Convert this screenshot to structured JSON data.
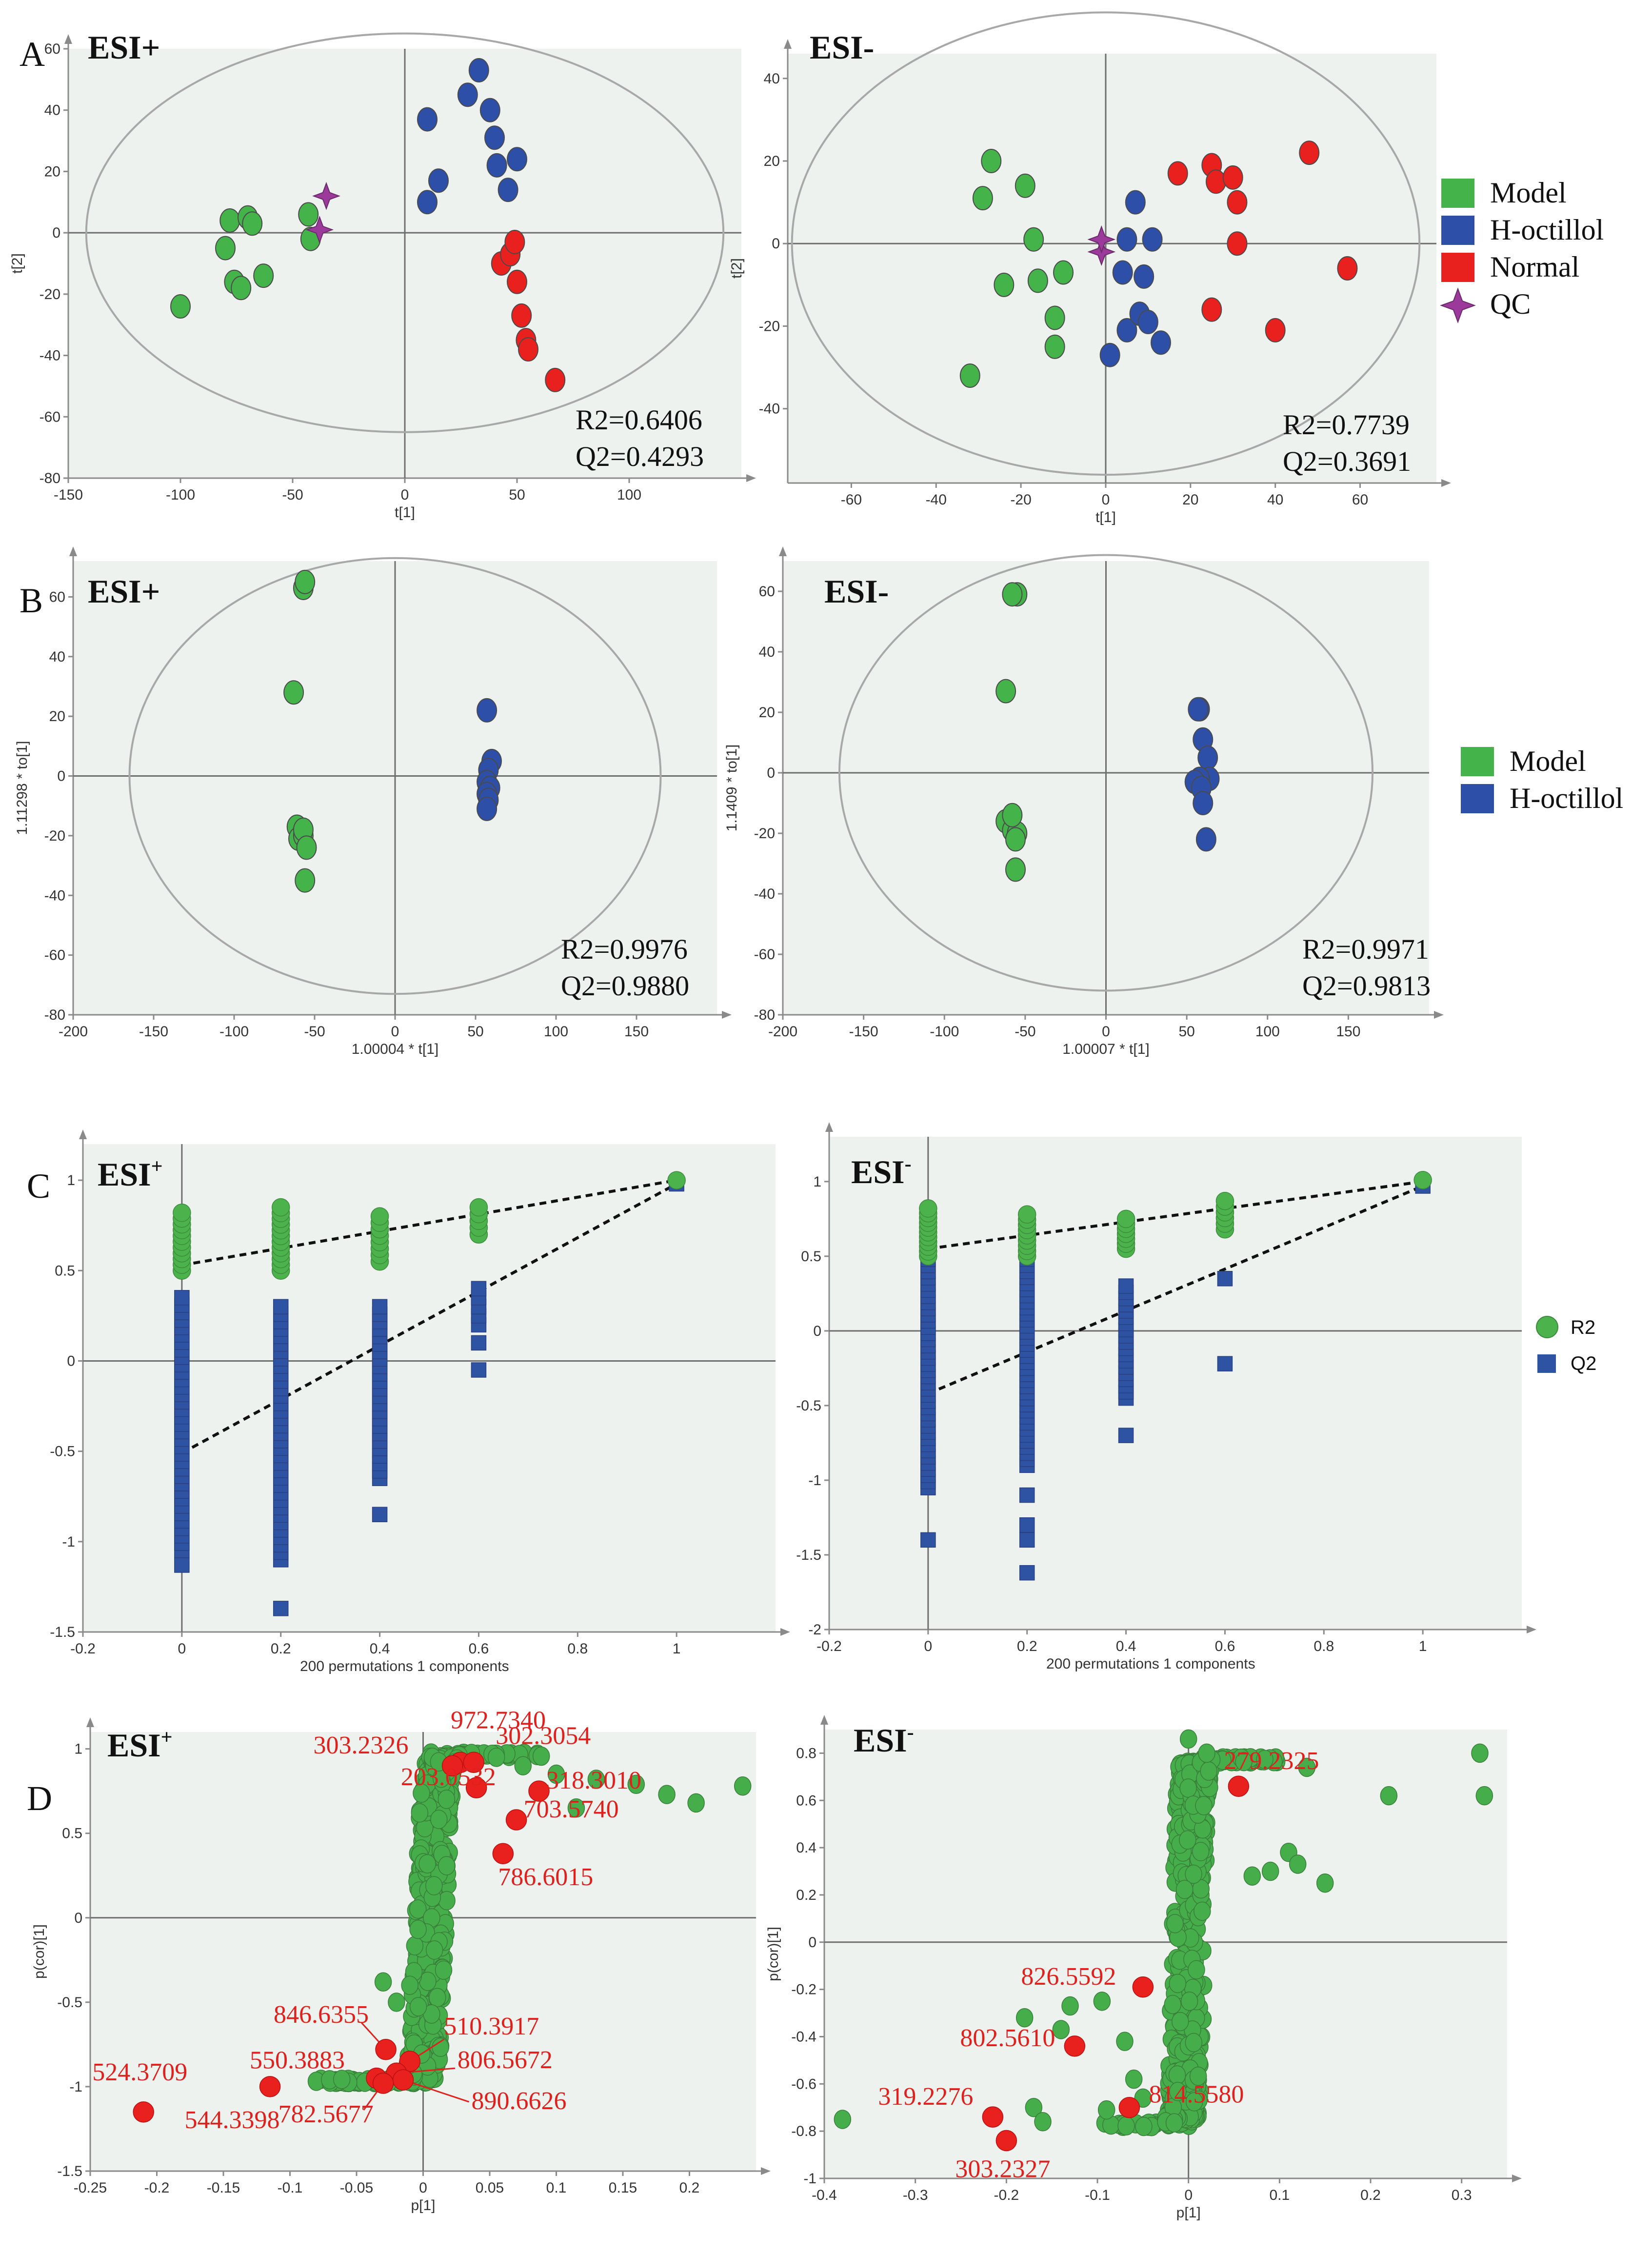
{
  "colors": {
    "model": "#44b34a",
    "hoctillol": "#2e4fa8",
    "normal": "#e8201e",
    "qc": "#9b3a9a",
    "r2": "#4cb34c",
    "q2": "#2f53a3",
    "label_red": "#e0201d",
    "marker_edge": "#555555"
  },
  "panels": {
    "A": "A",
    "B": "B",
    "C": "C",
    "D": "D"
  },
  "esi": {
    "pos": "ESI+",
    "neg": "ESI-",
    "pos_base": "ESI",
    "neg_base": "ESI",
    "plus": "+",
    "minus": "-"
  },
  "legendA": [
    {
      "label": "Model",
      "color": "model"
    },
    {
      "label": "H-octillol",
      "color": "hoctillol"
    },
    {
      "label": "Normal",
      "color": "normal"
    },
    {
      "label": "QC",
      "color": "qc"
    }
  ],
  "legendB": [
    {
      "label": "Model",
      "color": "model"
    },
    {
      "label": "H-octillol",
      "color": "hoctillol"
    }
  ],
  "legendC": [
    {
      "label": "R2"
    },
    {
      "label": "Q2"
    }
  ],
  "stats": {
    "A_pos": {
      "r": "R2=0.6406",
      "q": "Q2=0.4293"
    },
    "A_neg": {
      "r": "R2=0.7739",
      "q": "Q2=0.3691"
    },
    "B_pos": {
      "r": "R2=0.9976",
      "q": "Q2=0.9880"
    },
    "B_neg": {
      "r": "R2=0.9971",
      "q": "Q2=0.9813"
    }
  },
  "chart_data": [
    {
      "id": "A_pos",
      "type": "scatter",
      "title": "ESI+",
      "xlabel": "t[1]",
      "ylabel": "t[2]",
      "xlim": [
        -150,
        150
      ],
      "ylim": [
        -80,
        60
      ],
      "xticks": [
        -150,
        -100,
        -50,
        0,
        50,
        100
      ],
      "yticks": [
        -80,
        -60,
        -40,
        -20,
        0,
        20,
        40,
        60
      ],
      "ellipse": {
        "rx": 142,
        "ry": 65
      },
      "series": [
        {
          "name": "Model",
          "color": "model",
          "marker": "circle",
          "points": [
            [
              -100,
              -24
            ],
            [
              -80,
              -5
            ],
            [
              -78,
              4
            ],
            [
              -76,
              -16
            ],
            [
              -73,
              -18
            ],
            [
              -70,
              5
            ],
            [
              -68,
              3
            ],
            [
              -63,
              -14
            ],
            [
              -43,
              6
            ],
            [
              -42,
              -2
            ]
          ]
        },
        {
          "name": "H-octillol",
          "color": "hoctillol",
          "marker": "circle",
          "points": [
            [
              10,
              37
            ],
            [
              10,
              10
            ],
            [
              15,
              17
            ],
            [
              28,
              45
            ],
            [
              33,
              53
            ],
            [
              38,
              40
            ],
            [
              40,
              31
            ],
            [
              41,
              22
            ],
            [
              46,
              14
            ],
            [
              50,
              24
            ]
          ]
        },
        {
          "name": "Normal",
          "color": "normal",
          "marker": "circle",
          "points": [
            [
              43,
              -10
            ],
            [
              47,
              -7
            ],
            [
              49,
              -3
            ],
            [
              50,
              -16
            ],
            [
              52,
              -27
            ],
            [
              54,
              -35
            ],
            [
              55,
              -38
            ],
            [
              67,
              -48
            ]
          ]
        },
        {
          "name": "QC",
          "color": "qc",
          "marker": "star",
          "points": [
            [
              -35,
              12
            ],
            [
              -38,
              1
            ]
          ]
        }
      ]
    },
    {
      "id": "A_neg",
      "type": "scatter",
      "title": "ESI-",
      "xlabel": "t[1]",
      "ylabel": "t[2]",
      "xlim": [
        -75,
        78
      ],
      "ylim": [
        -58,
        46
      ],
      "xticks": [
        -60,
        -40,
        -20,
        0,
        20,
        40,
        60
      ],
      "yticks": [
        -40,
        -20,
        0,
        20,
        40
      ],
      "ellipse": {
        "rx": 74,
        "ry": 56
      },
      "series": [
        {
          "name": "Model",
          "color": "model",
          "marker": "circle",
          "points": [
            [
              -32,
              -32
            ],
            [
              -29,
              11
            ],
            [
              -27,
              20
            ],
            [
              -24,
              -10
            ],
            [
              -19,
              14
            ],
            [
              -17,
              1
            ],
            [
              -16,
              -9
            ],
            [
              -12,
              -18
            ],
            [
              -12,
              -25
            ],
            [
              -10,
              -7
            ]
          ]
        },
        {
          "name": "H-octillol",
          "color": "hoctillol",
          "marker": "circle",
          "points": [
            [
              1,
              -27
            ],
            [
              4,
              -7
            ],
            [
              5,
              -21
            ],
            [
              5,
              1
            ],
            [
              7,
              10
            ],
            [
              8,
              -17
            ],
            [
              9,
              -8
            ],
            [
              10,
              -19
            ],
            [
              11,
              1
            ],
            [
              13,
              -24
            ]
          ]
        },
        {
          "name": "Normal",
          "color": "normal",
          "marker": "circle",
          "points": [
            [
              17,
              17
            ],
            [
              25,
              -16
            ],
            [
              25,
              19
            ],
            [
              26,
              15
            ],
            [
              30,
              16
            ],
            [
              31,
              10
            ],
            [
              31,
              0
            ],
            [
              40,
              -21
            ],
            [
              48,
              22
            ],
            [
              57,
              -6
            ]
          ]
        },
        {
          "name": "QC",
          "color": "qc",
          "marker": "star",
          "points": [
            [
              -1,
              -2
            ],
            [
              -1,
              1
            ]
          ]
        }
      ]
    },
    {
      "id": "B_pos",
      "type": "scatter",
      "title": "ESI+",
      "xlabel": "1.00004 * t[1]",
      "ylabel": "1.11298 * to[1]",
      "xlim": [
        -200,
        200
      ],
      "ylim": [
        -80,
        72
      ],
      "xticks": [
        -200,
        -150,
        -100,
        -50,
        0,
        50,
        100,
        150
      ],
      "yticks": [
        -80,
        -60,
        -40,
        -20,
        0,
        20,
        40,
        60
      ],
      "ellipse": {
        "rx": 165,
        "ry": 73
      },
      "series": [
        {
          "name": "Model",
          "color": "model",
          "marker": "circle",
          "points": [
            [
              -57,
              63
            ],
            [
              -56,
              65
            ],
            [
              -63,
              28
            ],
            [
              -61,
              -17
            ],
            [
              -60,
              -21
            ],
            [
              -57,
              -20
            ],
            [
              -57,
              -18
            ],
            [
              -55,
              -24
            ],
            [
              -56,
              -35
            ]
          ]
        },
        {
          "name": "H-octillol",
          "color": "hoctillol",
          "marker": "circle",
          "points": [
            [
              57,
              22
            ],
            [
              60,
              5
            ],
            [
              58,
              2
            ],
            [
              57,
              -2
            ],
            [
              59,
              -4
            ],
            [
              57,
              -6
            ],
            [
              58,
              -8
            ],
            [
              57,
              -11
            ]
          ]
        }
      ]
    },
    {
      "id": "B_neg",
      "type": "scatter",
      "title": "ESI-",
      "xlabel": "1.00007 * t[1]",
      "ylabel": "1.1409 * to[1]",
      "xlim": [
        -200,
        200
      ],
      "ylim": [
        -80,
        70
      ],
      "xticks": [
        -200,
        -150,
        -100,
        -50,
        0,
        50,
        100,
        150
      ],
      "yticks": [
        -80,
        -60,
        -40,
        -20,
        0,
        20,
        40,
        60
      ],
      "ellipse": {
        "rx": 165,
        "ry": 72
      },
      "series": [
        {
          "name": "Model",
          "color": "model",
          "marker": "circle",
          "points": [
            [
              -55,
              59
            ],
            [
              -58,
              59
            ],
            [
              -62,
              27
            ],
            [
              -62,
              -16
            ],
            [
              -58,
              -19
            ],
            [
              -55,
              -20
            ],
            [
              -56,
              -22
            ],
            [
              -58,
              -14
            ],
            [
              -56,
              -32
            ]
          ]
        },
        {
          "name": "H-octillol",
          "color": "hoctillol",
          "marker": "circle",
          "points": [
            [
              58,
              21
            ],
            [
              57,
              21
            ],
            [
              60,
              11
            ],
            [
              63,
              5
            ],
            [
              64,
              -2
            ],
            [
              58,
              -2
            ],
            [
              55,
              -3
            ],
            [
              59,
              -5
            ],
            [
              60,
              -10
            ],
            [
              62,
              -22
            ]
          ]
        }
      ]
    },
    {
      "id": "C_pos",
      "type": "scatter",
      "title": "ESI+",
      "xlabel": "200 permutations 1 components",
      "ylabel": "",
      "xlim": [
        -0.2,
        1.2
      ],
      "ylim": [
        -1.5,
        1.2
      ],
      "xticks": [
        -0.2,
        0,
        0.2,
        0.4,
        0.6,
        0.8,
        1
      ],
      "yticks": [
        -1.5,
        -1,
        -0.5,
        0,
        0.5,
        1
      ],
      "lines": [
        {
          "x": [
            0,
            1
          ],
          "y": [
            0.53,
            1.0
          ]
        },
        {
          "x": [
            0,
            1
          ],
          "y": [
            -0.51,
            0.98
          ]
        }
      ],
      "series": [
        {
          "name": "R2",
          "color": "r2",
          "marker": "circle",
          "x": [
            0,
            0.2,
            0.4,
            0.6,
            1
          ],
          "range": [
            [
              0.5,
              0.82
            ],
            [
              0.5,
              0.85
            ],
            [
              0.55,
              0.8
            ],
            [
              0.7,
              0.85
            ],
            [
              1.0,
              1.0
            ]
          ]
        },
        {
          "name": "Q2",
          "color": "q2",
          "marker": "square",
          "x": [
            0,
            0.2,
            0.4,
            0.6,
            1
          ],
          "range": [
            [
              -1.05,
              0.35
            ],
            [
              -1.1,
              0.3
            ],
            [
              -0.65,
              0.3
            ],
            [
              0.2,
              0.4
            ],
            [
              0.98,
              0.98
            ]
          ],
          "outliers": [
            [
              0,
              -1.13
            ],
            [
              0.2,
              -1.37
            ],
            [
              0.4,
              -0.85
            ],
            [
              0.6,
              -0.05
            ],
            [
              0.6,
              0.1
            ]
          ]
        }
      ]
    },
    {
      "id": "C_neg",
      "type": "scatter",
      "title": "ESI-",
      "xlabel": "200 permutations 1 components",
      "ylabel": "",
      "xlim": [
        -0.2,
        1.2
      ],
      "ylim": [
        -2,
        1.3
      ],
      "xticks": [
        -0.2,
        0,
        0.2,
        0.4,
        0.6,
        0.8,
        1
      ],
      "yticks": [
        -2,
        -1.5,
        -1,
        -0.5,
        0,
        0.5,
        1
      ],
      "lines": [
        {
          "x": [
            0,
            1
          ],
          "y": [
            0.55,
            1.0
          ]
        },
        {
          "x": [
            0,
            1
          ],
          "y": [
            -0.42,
            0.97
          ]
        }
      ],
      "series": [
        {
          "name": "R2",
          "color": "r2",
          "marker": "circle",
          "x": [
            0,
            0.2,
            0.4,
            0.6,
            1
          ],
          "range": [
            [
              0.5,
              0.82
            ],
            [
              0.5,
              0.78
            ],
            [
              0.55,
              0.75
            ],
            [
              0.68,
              0.87
            ],
            [
              1.01,
              1.01
            ]
          ]
        },
        {
          "name": "Q2",
          "color": "q2",
          "marker": "square",
          "x": [
            0,
            0.2,
            0.4,
            0.6,
            1
          ],
          "range": [
            [
              -1.05,
              0.48
            ],
            [
              -0.9,
              0.48
            ],
            [
              -0.45,
              0.3
            ],
            [
              0.35,
              0.35
            ],
            [
              0.97,
              0.97
            ]
          ],
          "outliers": [
            [
              0,
              -1.4
            ],
            [
              0.2,
              -1.1
            ],
            [
              0.2,
              -1.3
            ],
            [
              0.2,
              -1.4
            ],
            [
              0.2,
              -1.62
            ],
            [
              0.4,
              -0.7
            ],
            [
              0.6,
              -0.22
            ]
          ]
        }
      ]
    },
    {
      "id": "D_pos",
      "type": "scatter",
      "title": "ESI+",
      "xlabel": "p[1]",
      "ylabel": "p(cor)[1]",
      "xlim": [
        -0.25,
        0.25
      ],
      "ylim": [
        -1.5,
        1.1
      ],
      "xticks": [
        -0.25,
        -0.2,
        -0.15,
        -0.1,
        -0.05,
        0,
        0.05,
        0.1,
        0.15,
        0.2
      ],
      "yticks": [
        -1.5,
        -1,
        -0.5,
        0,
        0.5,
        1
      ],
      "highlighted": [
        {
          "label": "972.7340",
          "x": 0.028,
          "y": 0.92
        },
        {
          "label": "303.2326",
          "x": 0.022,
          "y": 0.9
        },
        {
          "label": "302.3054",
          "x": 0.038,
          "y": 0.92
        },
        {
          "label": "318.3010",
          "x": 0.087,
          "y": 0.75
        },
        {
          "label": "203.0532",
          "x": 0.04,
          "y": 0.77
        },
        {
          "label": "703.5740",
          "x": 0.07,
          "y": 0.58
        },
        {
          "label": "786.6015",
          "x": 0.06,
          "y": 0.38
        },
        {
          "label": "846.6355",
          "x": -0.028,
          "y": -0.78
        },
        {
          "label": "510.3917",
          "x": -0.01,
          "y": -0.85
        },
        {
          "label": "806.5672",
          "x": -0.02,
          "y": -0.92
        },
        {
          "label": "550.3883",
          "x": -0.035,
          "y": -0.95
        },
        {
          "label": "890.6626",
          "x": -0.015,
          "y": -0.96
        },
        {
          "label": "782.5677",
          "x": -0.03,
          "y": -0.98
        },
        {
          "label": "524.3709",
          "x": -0.21,
          "y": -1.15
        },
        {
          "label": "544.3398",
          "x": -0.115,
          "y": -1.0
        }
      ]
    },
    {
      "id": "D_neg",
      "type": "scatter",
      "title": "ESI-",
      "xlabel": "p[1]",
      "ylabel": "p(cor)[1]",
      "xlim": [
        -0.4,
        0.35
      ],
      "ylim": [
        -1,
        0.9
      ],
      "xticks": [
        -0.4,
        -0.3,
        -0.2,
        -0.1,
        0,
        0.1,
        0.2,
        0.3
      ],
      "yticks": [
        -1,
        -0.8,
        -0.6,
        -0.4,
        -0.2,
        0,
        0.2,
        0.4,
        0.6,
        0.8
      ],
      "highlighted": [
        {
          "label": "279.2325",
          "x": 0.055,
          "y": 0.66
        },
        {
          "label": "826.5592",
          "x": -0.05,
          "y": -0.19
        },
        {
          "label": "802.5610",
          "x": -0.125,
          "y": -0.44
        },
        {
          "label": "814.5580",
          "x": -0.065,
          "y": -0.7
        },
        {
          "label": "319.2276",
          "x": -0.215,
          "y": -0.74
        },
        {
          "label": "303.2327",
          "x": -0.2,
          "y": -0.84
        }
      ]
    }
  ]
}
